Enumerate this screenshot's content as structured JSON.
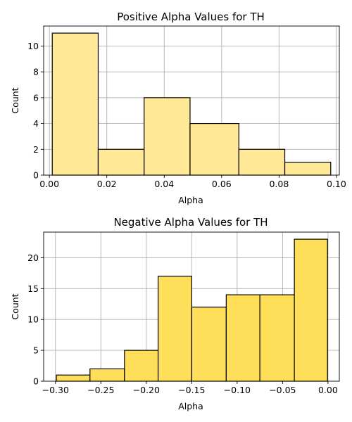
{
  "chart_data": [
    {
      "type": "bar",
      "subtype": "histogram",
      "title": "Positive Alpha Values for TH",
      "xlabel": "Alpha",
      "ylabel": "Count",
      "bin_edges": [
        0.001,
        0.017,
        0.033,
        0.049,
        0.066,
        0.082,
        0.098
      ],
      "values": [
        11,
        2,
        6,
        4,
        2,
        1
      ],
      "xlim": [
        -0.002,
        0.101
      ],
      "ylim": [
        0,
        11.55
      ],
      "xticks": [
        0.0,
        0.02,
        0.04,
        0.06,
        0.08,
        0.1
      ],
      "xtick_labels": [
        "0.00",
        "0.02",
        "0.04",
        "0.06",
        "0.08",
        "0.10"
      ],
      "yticks": [
        0,
        2,
        4,
        6,
        8,
        10
      ],
      "ytick_labels": [
        "0",
        "2",
        "4",
        "6",
        "8",
        "10"
      ],
      "bar_color": "#ffe896",
      "grid": true
    },
    {
      "type": "bar",
      "subtype": "histogram",
      "title": "Negative Alpha Values for TH",
      "xlabel": "Alpha",
      "ylabel": "Count",
      "bin_edges": [
        -0.299,
        -0.262,
        -0.224,
        -0.187,
        -0.15,
        -0.112,
        -0.075,
        -0.037,
        -0.0005
      ],
      "values": [
        1,
        2,
        5,
        17,
        12,
        14,
        14,
        23
      ],
      "xlim": [
        -0.313,
        0.0125
      ],
      "ylim": [
        0,
        24.15
      ],
      "xticks": [
        -0.3,
        -0.25,
        -0.2,
        -0.15,
        -0.1,
        -0.05,
        0.0
      ],
      "xtick_labels": [
        "−0.30",
        "−0.25",
        "−0.20",
        "−0.15",
        "−0.10",
        "−0.05",
        "0.00"
      ],
      "yticks": [
        0,
        5,
        10,
        15,
        20
      ],
      "ytick_labels": [
        "0",
        "5",
        "10",
        "15",
        "20"
      ],
      "bar_color": "#ffdf5a",
      "grid": true
    }
  ]
}
